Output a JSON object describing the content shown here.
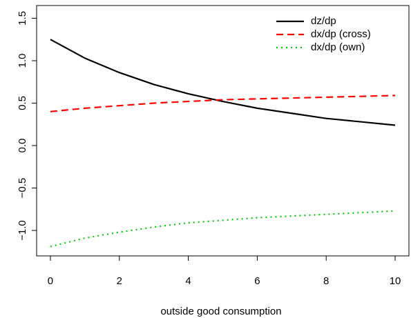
{
  "chart_data": {
    "type": "line",
    "x_label": "outside good consumption",
    "x": [
      0,
      1,
      2,
      3,
      4,
      5,
      6,
      7,
      8,
      9,
      10
    ],
    "series": [
      {
        "name": "dz/dp",
        "color": "#000000",
        "linestyle": "solid",
        "values": [
          1.25,
          1.03,
          0.86,
          0.72,
          0.61,
          0.52,
          0.44,
          0.38,
          0.32,
          0.28,
          0.24
        ]
      },
      {
        "name": "dx/dp (cross)",
        "color": "#ff0000",
        "linestyle": "dashed",
        "values": [
          0.4,
          0.44,
          0.47,
          0.5,
          0.52,
          0.54,
          0.55,
          0.56,
          0.57,
          0.58,
          0.59
        ]
      },
      {
        "name": "dx/dp (own)",
        "color": "#00cd00",
        "linestyle": "dotted",
        "values": [
          -1.19,
          -1.09,
          -1.02,
          -0.96,
          -0.91,
          -0.88,
          -0.85,
          -0.83,
          -0.81,
          -0.79,
          -0.77
        ]
      }
    ],
    "xlim": [
      -0.4,
      10.4
    ],
    "xticks": [
      0,
      2,
      4,
      6,
      8,
      10
    ],
    "ylim": [
      -1.3,
      1.65
    ],
    "yticks": [
      {
        "value": -1,
        "label": "−1.0"
      },
      {
        "value": -0.5,
        "label": "−0.5"
      },
      {
        "value": 0,
        "label": "0.0"
      },
      0.5,
      {
        "value": 1,
        "label": "1.0"
      },
      1.5
    ],
    "legend": "top-right",
    "grid": false
  }
}
